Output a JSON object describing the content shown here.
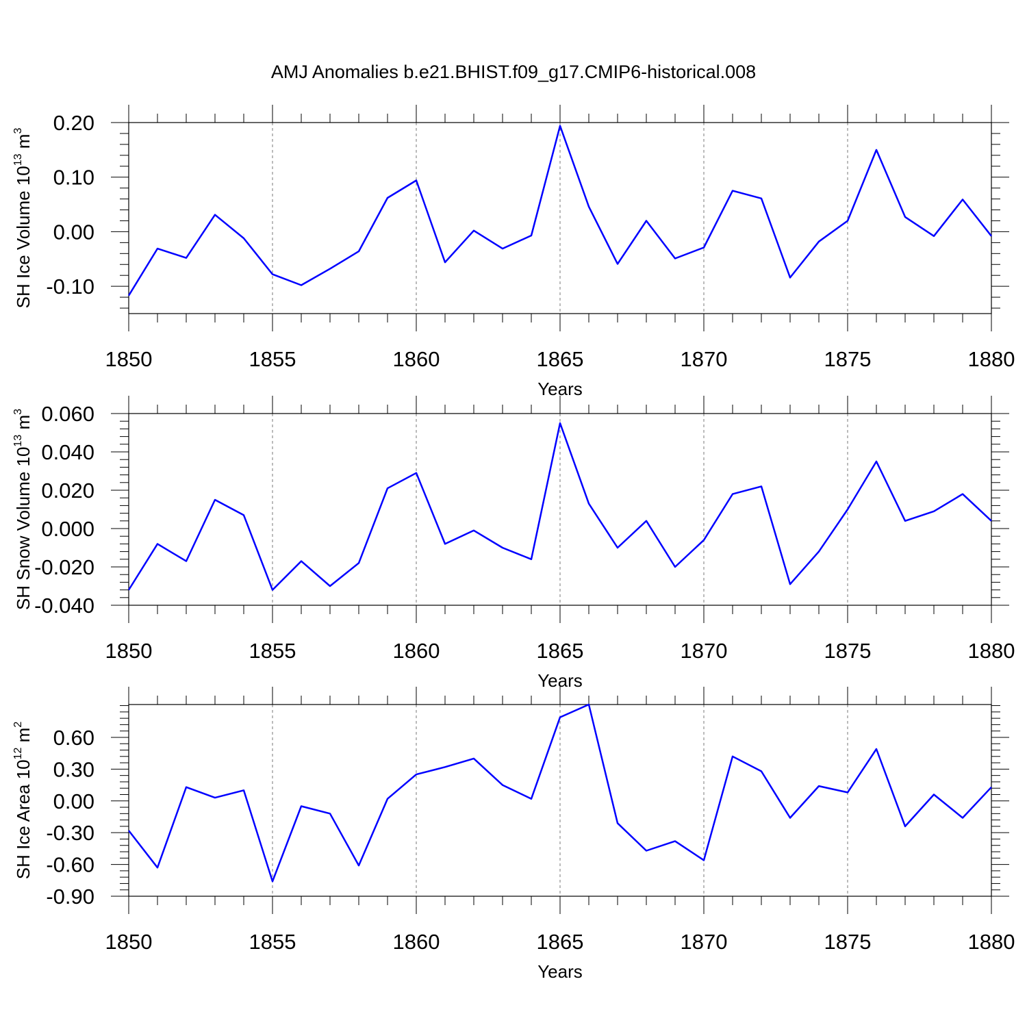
{
  "figure_title": "AMJ Anomalies b.e21.BHIST.f09_g17.CMIP6-historical.008",
  "chart_data": [
    {
      "type": "line",
      "title": "AMJ Anomalies b.e21.BHIST.f09_g17.CMIP6-historical.008",
      "xlabel": "Years",
      "ylabel": {
        "prefix": "SH Ice Volume 10",
        "exp": "13",
        "unit": " m",
        "unit_exp": "3"
      },
      "xlim": [
        1850,
        1880
      ],
      "ylim": [
        -0.15,
        0.2
      ],
      "yticks": [
        0.2,
        0.1,
        0.0,
        -0.1
      ],
      "ytick_labels": [
        "0.20",
        "0.10",
        "0.00",
        "-0.10"
      ],
      "xticks": [
        1850,
        1855,
        1860,
        1865,
        1870,
        1875,
        1880
      ],
      "xtick_labels": [
        "1850",
        "1855",
        "1860",
        "1865",
        "1870",
        "1875",
        "1880"
      ],
      "x": [
        1850,
        1851,
        1852,
        1853,
        1854,
        1855,
        1856,
        1857,
        1858,
        1859,
        1860,
        1861,
        1862,
        1863,
        1864,
        1865,
        1866,
        1867,
        1868,
        1869,
        1870,
        1871,
        1872,
        1873,
        1874,
        1875,
        1876,
        1877,
        1878,
        1879,
        1880
      ],
      "series": [
        {
          "name": "SH Ice Volume",
          "color": "#0000ff",
          "values": [
            -0.117,
            -0.031,
            -0.048,
            0.031,
            -0.012,
            -0.078,
            -0.098,
            -0.068,
            -0.036,
            0.062,
            0.094,
            -0.056,
            0.002,
            -0.031,
            -0.007,
            0.194,
            0.046,
            -0.059,
            0.02,
            -0.049,
            -0.029,
            0.075,
            0.061,
            -0.084,
            -0.018,
            0.02,
            0.15,
            0.027,
            -0.008,
            0.059,
            -0.008
          ]
        }
      ],
      "grid": "vertical dashed at major x ticks"
    },
    {
      "type": "line",
      "xlabel": "Years",
      "ylabel": {
        "prefix": "SH Snow Volume 10",
        "exp": "13",
        "unit": " m",
        "unit_exp": "3"
      },
      "xlim": [
        1850,
        1880
      ],
      "ylim": [
        -0.04,
        0.06
      ],
      "yticks": [
        0.06,
        0.04,
        0.02,
        0.0,
        -0.02,
        -0.04
      ],
      "ytick_labels": [
        "0.060",
        "0.040",
        "0.020",
        "0.000",
        "-0.020",
        "-0.040"
      ],
      "xticks": [
        1850,
        1855,
        1860,
        1865,
        1870,
        1875,
        1880
      ],
      "xtick_labels": [
        "1850",
        "1855",
        "1860",
        "1865",
        "1870",
        "1875",
        "1880"
      ],
      "x": [
        1850,
        1851,
        1852,
        1853,
        1854,
        1855,
        1856,
        1857,
        1858,
        1859,
        1860,
        1861,
        1862,
        1863,
        1864,
        1865,
        1866,
        1867,
        1868,
        1869,
        1870,
        1871,
        1872,
        1873,
        1874,
        1875,
        1876,
        1877,
        1878,
        1879,
        1880
      ],
      "series": [
        {
          "name": "SH Snow Volume",
          "color": "#0000ff",
          "values": [
            -0.032,
            -0.008,
            -0.017,
            0.015,
            0.007,
            -0.032,
            -0.017,
            -0.03,
            -0.018,
            0.021,
            0.029,
            -0.008,
            -0.001,
            -0.01,
            -0.016,
            0.055,
            0.013,
            -0.01,
            0.004,
            -0.02,
            -0.006,
            0.018,
            0.022,
            -0.029,
            -0.012,
            0.01,
            0.035,
            0.004,
            0.009,
            0.018,
            0.004
          ]
        }
      ],
      "grid": "vertical dashed at major x ticks"
    },
    {
      "type": "line",
      "xlabel": "Years",
      "ylabel": {
        "prefix": "SH Ice Area 10",
        "exp": "12",
        "unit": " m",
        "unit_exp": "2"
      },
      "xlim": [
        1850,
        1880
      ],
      "ylim": [
        -0.9,
        0.91
      ],
      "yticks": [
        0.6,
        0.3,
        0.0,
        -0.3,
        -0.6,
        -0.9
      ],
      "ytick_labels": [
        "0.60",
        "0.30",
        "0.00",
        "-0.30",
        "-0.60",
        "-0.90"
      ],
      "xticks": [
        1850,
        1855,
        1860,
        1865,
        1870,
        1875,
        1880
      ],
      "xtick_labels": [
        "1850",
        "1855",
        "1860",
        "1865",
        "1870",
        "1875",
        "1880"
      ],
      "x": [
        1850,
        1851,
        1852,
        1853,
        1854,
        1855,
        1856,
        1857,
        1858,
        1859,
        1860,
        1861,
        1862,
        1863,
        1864,
        1865,
        1866,
        1867,
        1868,
        1869,
        1870,
        1871,
        1872,
        1873,
        1874,
        1875,
        1876,
        1877,
        1878,
        1879,
        1880
      ],
      "series": [
        {
          "name": "SH Ice Area",
          "color": "#0000ff",
          "values": [
            -0.28,
            -0.63,
            0.13,
            0.03,
            0.1,
            -0.76,
            -0.05,
            -0.12,
            -0.61,
            0.02,
            0.25,
            0.32,
            0.4,
            0.15,
            0.02,
            0.79,
            0.91,
            -0.21,
            -0.47,
            -0.38,
            -0.56,
            0.42,
            0.28,
            -0.16,
            0.14,
            0.08,
            0.49,
            -0.24,
            0.06,
            -0.16,
            0.13
          ]
        }
      ],
      "grid": "vertical dashed at major x ticks"
    }
  ]
}
